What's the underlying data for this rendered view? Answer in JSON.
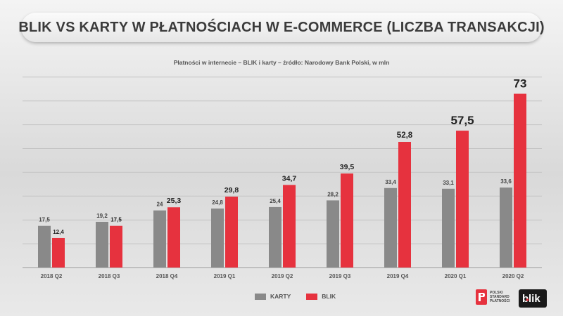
{
  "header": {
    "title": "BLIK VS KARTY W PŁATNOŚCIACH  W E-COMMERCE (LICZBA TRANSAKCJI)",
    "subtitle": "Płatności w internecie – BLIK i karty – źródło: Narodowy Bank Polski, w mln"
  },
  "colors": {
    "karty": "#898989",
    "blik": "#e6323e",
    "gridline": "#c4c4c4"
  },
  "chart_data": {
    "type": "bar",
    "categories": [
      "2018 Q2",
      "2018 Q3",
      "2018 Q4",
      "2019 Q1",
      "2019 Q2",
      "2019 Q3",
      "2019 Q4",
      "2020 Q1",
      "2020 Q2"
    ],
    "series": [
      {
        "name": "KARTY",
        "values": [
          17.5,
          19.2,
          24,
          24.8,
          25.4,
          28.2,
          33.4,
          33.1,
          33.6
        ],
        "labels": [
          "17,5",
          "19,2",
          "24",
          "24,8",
          "25,4",
          "28,2",
          "33,4",
          "33,1",
          "33,6"
        ]
      },
      {
        "name": "BLIK",
        "values": [
          12.4,
          17.5,
          25.3,
          29.8,
          34.7,
          39.5,
          52.8,
          57.5,
          73
        ],
        "labels": [
          "12,4",
          "17,5",
          "25,3",
          "29,8",
          "34,7",
          "39,5",
          "52,8",
          "57,5",
          "73"
        ]
      }
    ],
    "title": "BLIK VS KARTY W PŁATNOŚCIACH  W E-COMMERCE (LICZBA TRANSAKCJI)",
    "xlabel": "",
    "ylabel": "",
    "ylim": [
      0,
      80
    ],
    "grid": true,
    "legend": "bottom-center"
  },
  "legend": {
    "items": [
      {
        "label": "KARTY"
      },
      {
        "label": "BLIK"
      }
    ]
  },
  "logos": {
    "psp_lines": [
      "POLSKI",
      "STANDARD",
      "PŁATNOŚCI"
    ],
    "blik_text": "blik"
  }
}
